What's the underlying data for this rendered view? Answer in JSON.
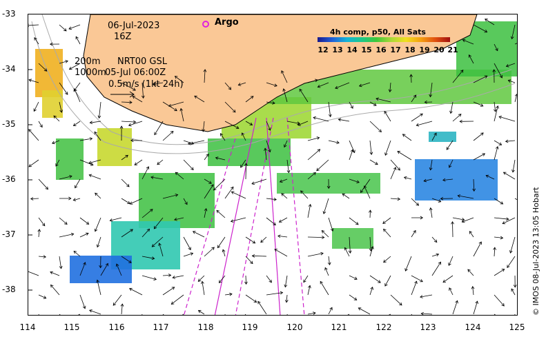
{
  "map": {
    "date": "06-Jul-2023",
    "hour": "16Z",
    "argo_label": "Argo",
    "legend_title": "4h comp, p50, All Sats",
    "legend_ticks": [
      "12",
      "13",
      "14",
      "15",
      "16",
      "17",
      "18",
      "19",
      "20",
      "21"
    ],
    "contour_200": "200m",
    "contour_1000": "1000m",
    "product": "NRT00 GSL",
    "product_time": "05-Jul 06:00Z",
    "scale_text": "0.5m/s (1kt 24h)",
    "credit": "© IMOS 08-Jul-2023 13:05 Hobart",
    "lat_labels": [
      "-33",
      "-34",
      "-35",
      "-36",
      "-37",
      "-38"
    ],
    "lon_labels": [
      "114",
      "115",
      "116",
      "117",
      "118",
      "119",
      "120",
      "121",
      "122",
      "123",
      "124",
      "125"
    ],
    "colors": {
      "land": "#fac896",
      "track": "#cc22cc",
      "argo": "#e020e0"
    }
  }
}
